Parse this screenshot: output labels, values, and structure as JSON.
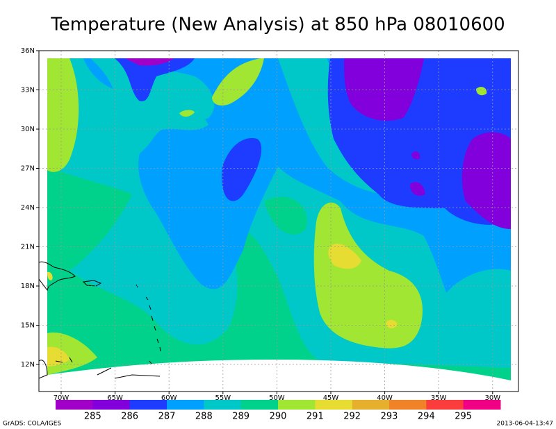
{
  "map": {
    "title": "Temperature (New Analysis) at 850 hPa 08010600",
    "lat_labels": [
      "36N",
      "33N",
      "30N",
      "27N",
      "24N",
      "21N",
      "18N",
      "15N",
      "12N"
    ],
    "lon_labels": [
      "70W",
      "65W",
      "60W",
      "55W",
      "50W",
      "45W",
      "40W",
      "35W",
      "30W"
    ],
    "colorbar": {
      "colors": [
        "#a000c8",
        "#8200dc",
        "#1e3cff",
        "#00a0ff",
        "#00c8c8",
        "#00d28c",
        "#a0e632",
        "#e6dc32",
        "#e6af2d",
        "#f08228",
        "#fa3c3c",
        "#f00082"
      ],
      "labels": [
        285,
        286,
        287,
        288,
        289,
        290,
        291,
        292,
        293,
        294,
        295
      ]
    },
    "footer_left": "GrADS: COLA/IGES",
    "footer_right": "2013-06-04-13:47"
  }
}
